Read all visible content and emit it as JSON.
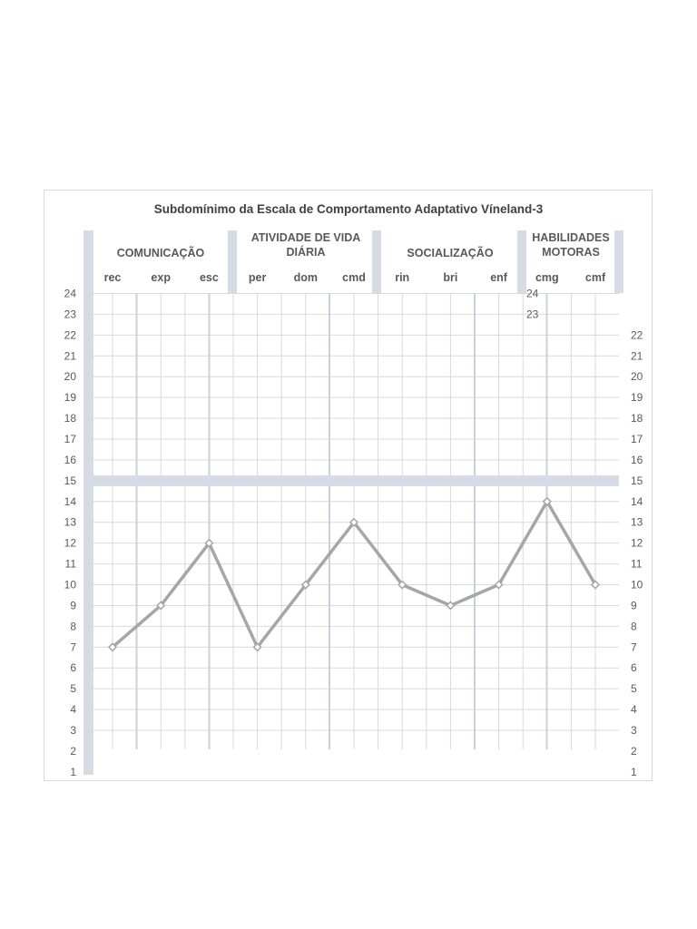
{
  "chart_data": {
    "type": "line",
    "title": "Subdomínimo da Escala de Comportamento Adaptativo Víneland-3",
    "domains": [
      {
        "lines": [
          "COMUNICAÇÃO"
        ],
        "categories": [
          "rec",
          "exp",
          "esc"
        ]
      },
      {
        "lines": [
          "ATIVIDADE DE VIDA",
          "DIÁRIA"
        ],
        "categories": [
          "per",
          "dom",
          "cmd"
        ]
      },
      {
        "lines": [
          "SOCIALIZAÇÃO"
        ],
        "categories": [
          "rin",
          "bri",
          "enf"
        ]
      },
      {
        "lines": [
          "HABILIDADES",
          "MOTORAS"
        ],
        "categories": [
          "cmg",
          "cmf"
        ]
      }
    ],
    "categories": [
      "rec",
      "exp",
      "esc",
      "per",
      "dom",
      "cmd",
      "rin",
      "bri",
      "enf",
      "cmg",
      "cmf"
    ],
    "series": [
      {
        "values": [
          7,
          9,
          12,
          7,
          10,
          13,
          10,
          9,
          10,
          14,
          10
        ]
      }
    ],
    "ylim": [
      1,
      24
    ],
    "left_ticks": [
      24,
      23,
      22,
      21,
      20,
      19,
      18,
      17,
      16,
      15,
      14,
      13,
      12,
      11,
      10,
      9,
      8,
      7,
      6,
      5,
      4,
      3,
      2,
      1
    ],
    "right_ticks": [
      22,
      21,
      20,
      19,
      18,
      17,
      16,
      15,
      14,
      13,
      12,
      11,
      10,
      9,
      8,
      7,
      6,
      5,
      4,
      3,
      2,
      1
    ],
    "inner_ticks": [
      24,
      23
    ],
    "reference_value": 15,
    "grid": true,
    "legend": "none",
    "colors": {
      "line": "#a6a6a6",
      "grid": "#d9d9d9",
      "band": "#d6dce5",
      "separator": "#c9cfdb",
      "text": "#595959"
    }
  }
}
